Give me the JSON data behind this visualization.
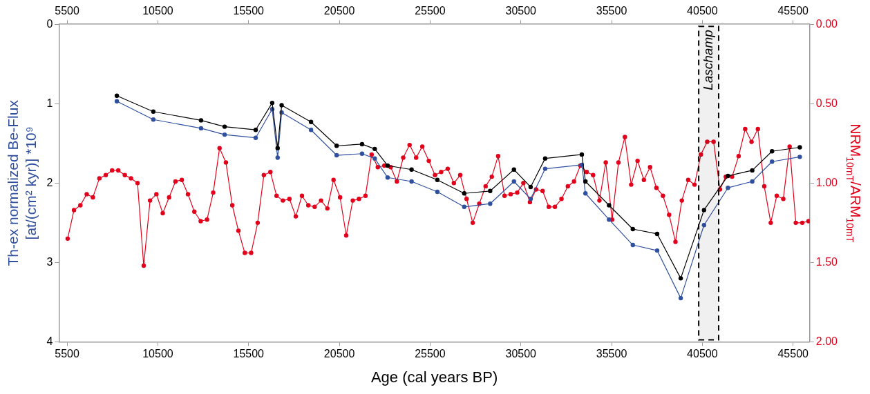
{
  "chart_data": {
    "type": "line",
    "xlabel": "Age (cal years BP)",
    "ylabel": "Th-ex normalized Be-Flux [at/(cm² kyr)] *10⁹",
    "y2label": "NRM$_{10mT}$/ARM$_{10mT}$",
    "xlim": [
      5050,
      46420
    ],
    "xticks": [
      5500,
      10500,
      15500,
      20500,
      25500,
      30500,
      35500,
      40500,
      45500
    ],
    "x2lim": [
      5050,
      46420
    ],
    "x2ticks": [
      5500,
      10500,
      15500,
      20500,
      25500,
      30500,
      35500,
      40500,
      45500
    ],
    "ylim": [
      4,
      0
    ],
    "yticks": [
      0,
      1,
      2,
      3,
      4
    ],
    "y2lim": [
      2,
      0
    ],
    "y2ticks": [
      {
        "value": 0,
        "label": "0.00"
      },
      {
        "value": 0.5,
        "label": "0.50"
      },
      {
        "value": 1,
        "label": "1.00"
      },
      {
        "value": 1.5,
        "label": "1.50"
      },
      {
        "value": 2,
        "label": "2.00"
      }
    ],
    "grid": false,
    "legend": false,
    "marker": "circle",
    "line_style": "solid",
    "bands": [
      {
        "axis": "x",
        "from": 40300,
        "to": 41400,
        "label": "Laschamp",
        "color": "#000000"
      }
    ],
    "series": [
      {
        "color": "#000000",
        "x": [
          8240,
          10250,
          12880,
          14180,
          15890,
          16800,
          17100,
          17320,
          18940,
          20350,
          21750,
          22450,
          23160,
          24480,
          25900,
          27380,
          28810,
          30120,
          31040,
          31840,
          33860,
          34060,
          35360,
          36670,
          38010,
          39310,
          40590,
          41910,
          43250,
          44340,
          45870
        ],
        "values": [
          0.9,
          1.1,
          1.21,
          1.29,
          1.33,
          0.99,
          1.56,
          1.02,
          1.23,
          1.53,
          1.51,
          1.57,
          1.78,
          1.83,
          1.96,
          2.13,
          2.1,
          1.83,
          2.05,
          1.69,
          1.64,
          1.98,
          2.28,
          2.58,
          2.64,
          3.2,
          2.34,
          1.91,
          1.84,
          1.6,
          1.55
        ]
      },
      {
        "color": "#2f4f9f",
        "x": [
          8240,
          10250,
          12880,
          14180,
          15890,
          16800,
          17100,
          17320,
          18940,
          20350,
          21750,
          22450,
          23160,
          24480,
          25900,
          27380,
          28810,
          30120,
          31040,
          31840,
          33860,
          34060,
          35360,
          36670,
          38010,
          39310,
          40590,
          41910,
          43250,
          44340,
          45870
        ],
        "values": [
          0.97,
          1.2,
          1.31,
          1.39,
          1.43,
          1.07,
          1.68,
          1.11,
          1.33,
          1.65,
          1.63,
          1.69,
          1.93,
          1.98,
          2.11,
          2.3,
          2.26,
          1.98,
          2.2,
          1.82,
          1.77,
          2.13,
          2.46,
          2.78,
          2.85,
          3.45,
          2.53,
          2.06,
          1.98,
          1.73,
          1.67
        ]
      },
      {
        "color": "#e3001b",
        "axis": "y2",
        "x": [
          5530,
          5880,
          6230,
          6580,
          6920,
          7280,
          7630,
          7980,
          8320,
          8680,
          9020,
          9380,
          9720,
          10070,
          10420,
          10770,
          11120,
          11470,
          11820,
          12160,
          12510,
          12860,
          13210,
          13550,
          13900,
          14250,
          14600,
          14940,
          15290,
          15640,
          16000,
          16340,
          16700,
          17040,
          17390,
          17750,
          18100,
          18440,
          18790,
          19140,
          19490,
          19840,
          20180,
          20540,
          20880,
          21240,
          21580,
          21940,
          22280,
          22620,
          22980,
          23330,
          23670,
          24020,
          24370,
          24730,
          25070,
          25430,
          25770,
          26110,
          26470,
          26810,
          27160,
          27510,
          27850,
          28210,
          28560,
          28900,
          29250,
          29600,
          29940,
          30300,
          30640,
          31000,
          31340,
          31700,
          32040,
          32380,
          32740,
          33090,
          33430,
          33780,
          34130,
          34480,
          34830,
          35180,
          35530,
          35880,
          36230,
          36580,
          36930,
          37280,
          37620,
          37970,
          38330,
          38670,
          39020,
          39370,
          39720,
          40070,
          40420,
          40770,
          41120,
          41470,
          41790,
          42140,
          42500,
          42860,
          43210,
          43560,
          43910,
          44270,
          44600,
          44960,
          45310,
          45650,
          46010,
          46350
        ],
        "values": [
          1.35,
          1.17,
          1.14,
          1.07,
          1.09,
          0.97,
          0.95,
          0.92,
          0.92,
          0.95,
          0.97,
          1.0,
          1.52,
          1.11,
          1.07,
          1.19,
          1.09,
          0.99,
          0.98,
          1.07,
          1.18,
          1.24,
          1.23,
          1.06,
          0.78,
          0.87,
          1.14,
          1.3,
          1.44,
          1.44,
          1.25,
          0.95,
          0.93,
          1.08,
          1.11,
          1.1,
          1.21,
          1.08,
          1.14,
          1.15,
          1.11,
          1.16,
          0.98,
          1.09,
          1.33,
          1.11,
          1.1,
          1.08,
          0.82,
          0.9,
          0.89,
          0.9,
          0.99,
          0.84,
          0.76,
          0.84,
          0.77,
          0.86,
          0.95,
          0.93,
          0.91,
          1.0,
          0.95,
          1.1,
          1.25,
          1.13,
          1.02,
          0.96,
          0.83,
          1.08,
          1.07,
          1.06,
          1.0,
          1.12,
          1.04,
          1.05,
          1.15,
          1.15,
          1.1,
          1.02,
          0.99,
          0.89,
          0.93,
          0.95,
          1.11,
          0.87,
          1.23,
          0.87,
          0.71,
          1.01,
          0.86,
          0.98,
          0.9,
          1.03,
          1.08,
          1.2,
          1.37,
          1.11,
          0.98,
          1.01,
          0.82,
          0.74,
          0.74,
          1.04,
          0.96,
          0.96,
          0.83,
          0.66,
          0.74,
          0.66,
          1.02,
          1.25,
          1.08,
          1.1,
          0.77,
          1.25,
          1.25,
          1.24
        ]
      }
    ]
  }
}
